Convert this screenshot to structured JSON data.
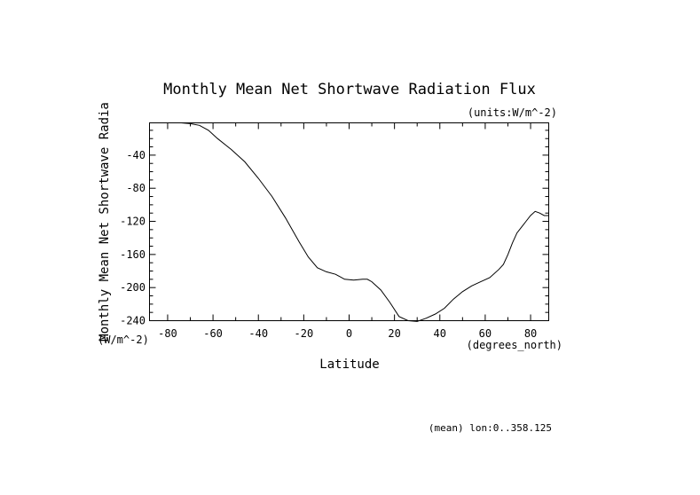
{
  "chart_data": {
    "type": "line",
    "title": "Monthly Mean Net Shortwave Radiation Flux",
    "units_label": "(units:W/m^-2)",
    "xlabel": "Latitude",
    "xunits": "(degrees_north)",
    "ylabel": "Monthly Mean Net Shortwave Radia",
    "yunits": "(W/m^-2)",
    "footer": "(mean) lon:0..358.125",
    "xlim": [
      -88,
      88
    ],
    "ylim": [
      -240,
      -1
    ],
    "xticks": [
      -80,
      -60,
      -40,
      -20,
      0,
      20,
      40,
      60,
      80
    ],
    "xtick_labels": [
      "-80",
      "-60",
      "-40",
      "-20",
      "0",
      "20",
      "40",
      "60",
      "80"
    ],
    "yticks": [
      -40,
      -80,
      -120,
      -160,
      -200,
      -240
    ],
    "ytick_labels": [
      "-40",
      "-80",
      "-120",
      "-160",
      "-200",
      "-240"
    ],
    "grid": false,
    "series": [
      {
        "name": "Net Shortwave Radiation Flux",
        "x": [
          -74,
          -70,
          -66,
          -62,
          -58,
          -52,
          -46,
          -40,
          -34,
          -28,
          -22,
          -18,
          -14,
          -10,
          -6,
          -2,
          2,
          6,
          8,
          10,
          14,
          18,
          22,
          26,
          30,
          34,
          38,
          42,
          46,
          50,
          54,
          58,
          62,
          66,
          68,
          70,
          72,
          74,
          76,
          78,
          80,
          82,
          84,
          86,
          88
        ],
        "y": [
          -1,
          -2,
          -4,
          -10,
          -20,
          -33,
          -48,
          -68,
          -90,
          -116,
          -145,
          -163,
          -176,
          -181,
          -184,
          -190,
          -191,
          -190,
          -190,
          -193,
          -203,
          -218,
          -235,
          -240,
          -241,
          -237,
          -232,
          -225,
          -214,
          -205,
          -198,
          -193,
          -188,
          -178,
          -172,
          -160,
          -146,
          -134,
          -127,
          -120,
          -113,
          -108,
          -110,
          -113,
          -113
        ]
      }
    ]
  }
}
